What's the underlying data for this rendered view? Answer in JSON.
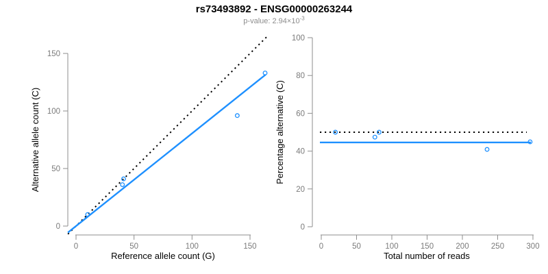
{
  "figure": {
    "title": "rs73493892 - ENSG00000263244",
    "subtitle": {
      "label": "p-value:",
      "value": "2.94×10",
      "superscript": "-3"
    }
  },
  "colors": {
    "accent_blue": "#1E90FF",
    "line_black": "#000000",
    "axis_gray": "#8E8E8E",
    "tick_text_gray": "#7A7A7A",
    "label_black": "#000000",
    "subtitle_gray": "#8C8C8C",
    "background": "#FFFFFF"
  },
  "chart_data": [
    {
      "id": "allele-counts-scatter",
      "type": "scatter",
      "title": "",
      "xlabel": "Reference allele count (G)",
      "ylabel": "Alternative allele count (C)",
      "xlim": [
        0,
        163
      ],
      "ylim": [
        0,
        160
      ],
      "xticks": [
        0,
        50,
        100,
        150
      ],
      "yticks": [
        0,
        50,
        100,
        150
      ],
      "grid": false,
      "legend": "none",
      "points": [
        [
          10,
          10
        ],
        [
          40,
          36
        ],
        [
          41,
          41
        ],
        [
          139,
          96
        ],
        [
          163,
          133
        ]
      ],
      "lines": [
        {
          "label": "identity-line",
          "style": "dotted",
          "color": "black",
          "slope": 1,
          "intercept": 0
        },
        {
          "label": "fit-line",
          "style": "solid",
          "color": "blue",
          "slope": 0.805,
          "intercept": 0
        }
      ]
    },
    {
      "id": "percentage-vs-reads-scatter",
      "type": "scatter",
      "title": "",
      "xlabel": "Total number of reads",
      "ylabel": "Percentage alternative (C)",
      "xlim": [
        0,
        300
      ],
      "ylim": [
        0,
        100
      ],
      "xticks": [
        0,
        50,
        100,
        150,
        200,
        250,
        300
      ],
      "yticks": [
        0,
        20,
        40,
        60,
        80,
        100
      ],
      "grid": false,
      "legend": "none",
      "points": [
        [
          20,
          50
        ],
        [
          76,
          47.4
        ],
        [
          82,
          50
        ],
        [
          235,
          40.9
        ],
        [
          296,
          44.9
        ]
      ],
      "hlines": [
        {
          "label": "expected-50-percent-line",
          "style": "dotted",
          "color": "black",
          "y": 50
        },
        {
          "label": "mean-percentage-line",
          "style": "solid",
          "color": "blue",
          "y": 44.6
        }
      ]
    }
  ]
}
